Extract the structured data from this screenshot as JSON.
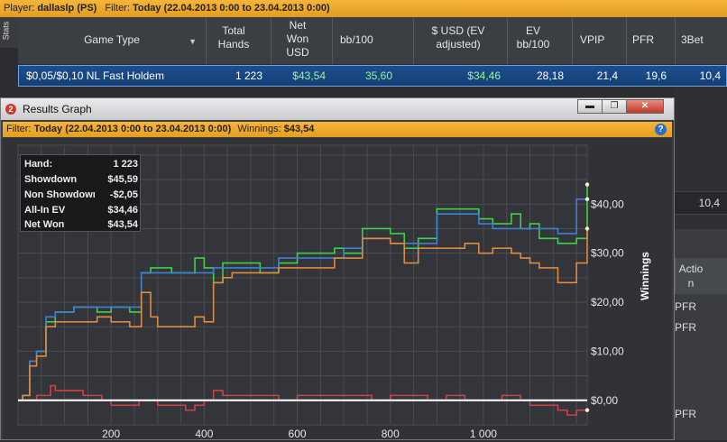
{
  "topbar": {
    "player_label": "Player:",
    "player": "dallaslp (PS)",
    "filter_label": "Filter:",
    "filter": "Today (22.04.2013 0:00 to 23.04.2013 0:00)"
  },
  "stats_tab": "Stats",
  "table": {
    "headers": [
      "Game Type",
      "Total Hands",
      "Net Won USD",
      "bb/100",
      "$ USD (EV adjusted)",
      "EV bb/100",
      "VPIP",
      "PFR",
      "3Bet"
    ],
    "row": {
      "game_type": "$0,05/$0,10 NL Fast Holdem",
      "total_hands": "1 223",
      "net_won": "$43,54",
      "bb100": "35,60",
      "usd_ev": "$34,46",
      "ev_bb100": "28,18",
      "vpip": "21,4",
      "pfr": "19,6",
      "threebet": "10,4"
    }
  },
  "background": {
    "right_value": "10,4",
    "action_header": "Actio n",
    "pfr_1": "PFR",
    "pfr_2": "PFR",
    "pfr_3": "PFR"
  },
  "window": {
    "badge": "2",
    "title": "Results Graph",
    "filter_label": "Filter:",
    "filter": "Today (22.04.2013 0:00 to 23.04.2013 0:00)",
    "winnings_label": "Winnings:",
    "winnings": "$43,54",
    "help": "?"
  },
  "legend": [
    {
      "label": "Hand:",
      "value": "1 223"
    },
    {
      "label": "Showdown",
      "value": "$45,59"
    },
    {
      "label": "Non Showdown",
      "value": "-$2,05"
    },
    {
      "label": "All-In EV",
      "value": "$34,46"
    },
    {
      "label": "Net Won",
      "value": "$43,54"
    }
  ],
  "chart_data": {
    "type": "line",
    "ylabel": "Winnings",
    "xlabel": "",
    "x_ticks": [
      "200",
      "400",
      "600",
      "800",
      "1 000"
    ],
    "x_tick_values": [
      200,
      400,
      600,
      800,
      1000
    ],
    "y_ticks": [
      "$0,00",
      "$10,00",
      "$20,00",
      "$30,00",
      "$40,00"
    ],
    "y_tick_values": [
      0,
      10,
      20,
      30,
      40
    ],
    "xlim": [
      0,
      1223
    ],
    "ylim": [
      -5,
      52
    ],
    "grid": true,
    "series": [
      {
        "color": "#3fd04a",
        "x": [
          0,
          10,
          25,
          40,
          60,
          80,
          120,
          170,
          200,
          240,
          265,
          285,
          300,
          330,
          380,
          400,
          420,
          440,
          460,
          520,
          560,
          600,
          640,
          680,
          700,
          740,
          780,
          800,
          830,
          860,
          880,
          900,
          960,
          990,
          1020,
          1040,
          1060,
          1080,
          1100,
          1120,
          1160,
          1180,
          1200,
          1223
        ],
        "y": [
          0,
          1,
          8,
          10,
          16,
          18,
          19,
          18,
          19,
          18,
          26,
          27,
          27,
          26,
          29,
          27,
          24,
          28,
          28,
          26,
          28,
          30,
          30,
          31,
          30,
          35,
          35,
          34,
          31,
          33,
          33,
          39,
          39,
          37,
          36,
          36,
          38,
          35,
          36,
          33,
          32,
          32,
          33,
          44
        ]
      },
      {
        "color": "#3f7fd6",
        "x": [
          0,
          10,
          25,
          40,
          60,
          80,
          120,
          170,
          200,
          240,
          265,
          285,
          300,
          330,
          380,
          400,
          420,
          440,
          460,
          520,
          560,
          600,
          640,
          680,
          700,
          740,
          780,
          800,
          830,
          860,
          880,
          900,
          960,
          990,
          1020,
          1040,
          1060,
          1080,
          1100,
          1120,
          1160,
          1180,
          1200,
          1223
        ],
        "y": [
          0,
          1,
          8,
          10,
          17,
          18,
          19,
          19,
          19,
          19,
          26,
          26,
          26,
          26,
          26,
          26,
          27,
          27,
          27,
          27,
          29,
          29,
          29,
          29,
          31,
          33,
          33,
          32,
          32,
          32,
          32,
          38,
          38,
          36,
          35,
          35,
          35,
          35,
          35,
          35,
          34,
          34,
          41,
          41
        ]
      },
      {
        "color": "#e08a3c",
        "x": [
          0,
          10,
          25,
          40,
          60,
          80,
          120,
          170,
          200,
          240,
          265,
          285,
          300,
          330,
          380,
          400,
          420,
          440,
          460,
          520,
          560,
          600,
          640,
          680,
          700,
          740,
          780,
          800,
          830,
          860,
          880,
          900,
          960,
          990,
          1020,
          1040,
          1060,
          1080,
          1100,
          1120,
          1160,
          1180,
          1200,
          1223
        ],
        "y": [
          0,
          1,
          7,
          9,
          15,
          16,
          16,
          17,
          16,
          15,
          22,
          17,
          15,
          15,
          17,
          16,
          24,
          25,
          26,
          26,
          27,
          27,
          27,
          29,
          29,
          33,
          33,
          32,
          28,
          31,
          31,
          31,
          32,
          30,
          31,
          31,
          30,
          29,
          28,
          27,
          24,
          24,
          28,
          35
        ]
      },
      {
        "color": "#c84545",
        "x": [
          0,
          40,
          70,
          80,
          100,
          140,
          180,
          200,
          260,
          300,
          340,
          360,
          380,
          400,
          420,
          440,
          480,
          520,
          560,
          600,
          640,
          700,
          760,
          800,
          840,
          880,
          920,
          960,
          1000,
          1040,
          1080,
          1100,
          1140,
          1160,
          1180,
          1200,
          1223
        ],
        "y": [
          0,
          1,
          3,
          2,
          2,
          1,
          0,
          -1,
          0,
          -1,
          -1,
          -2,
          -1,
          0,
          2,
          1,
          1,
          1,
          0,
          1,
          1,
          1,
          0,
          1,
          1,
          0,
          1,
          0,
          0,
          1,
          0,
          -1,
          -1,
          -2,
          -3,
          -2,
          -2
        ]
      },
      {
        "color": "#ffffff",
        "x": [
          0,
          1223
        ],
        "y": [
          0,
          0
        ]
      }
    ]
  }
}
